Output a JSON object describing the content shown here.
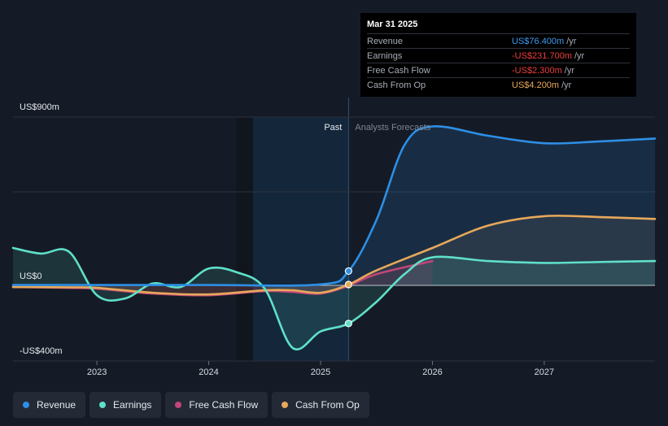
{
  "chart_data": {
    "type": "line",
    "title": "",
    "y_axis": {
      "labels": [
        "US$900m",
        "US$0",
        "-US$400m"
      ],
      "ylim": [
        -400,
        900
      ]
    },
    "x_axis": {
      "ticks": [
        "2023",
        "2024",
        "2025",
        "2026",
        "2027"
      ],
      "xlim": [
        2022.25,
        2027.99
      ]
    },
    "regions": {
      "past_label": "Past",
      "forecast_label": "Analysts Forecasts",
      "divider_x": 2025.25
    },
    "series": [
      {
        "name": "Revenue",
        "color": "#2d8fe6",
        "x": [
          2022.25,
          2023,
          2024,
          2025,
          2025.25,
          2025.5,
          2025.75,
          2026,
          2026.5,
          2027,
          2027.5,
          2027.99
        ],
        "y": [
          2,
          2,
          2,
          5,
          76.4,
          350,
          750,
          850,
          800,
          760,
          770,
          785
        ]
      },
      {
        "name": "Earnings",
        "color": "#5fe0c9",
        "x": [
          2022.25,
          2022.5,
          2022.75,
          2023,
          2023.25,
          2023.5,
          2023.75,
          2024,
          2024.25,
          2024.5,
          2024.75,
          2025,
          2025.25,
          2025.5,
          2025.75,
          2026,
          2026.5,
          2027,
          2027.5,
          2027.99
        ],
        "y": [
          200,
          170,
          180,
          -60,
          -80,
          10,
          -10,
          90,
          70,
          -20,
          -380,
          -280,
          -231.7,
          -100,
          60,
          150,
          130,
          120,
          125,
          130
        ]
      },
      {
        "name": "Free Cash Flow",
        "color": "#c2457a",
        "x": [
          2022.25,
          2022.75,
          2023,
          2023.5,
          2024,
          2024.5,
          2024.75,
          2025,
          2025.25,
          2025.5,
          2026
        ],
        "y": [
          -10,
          -15,
          -20,
          -50,
          -60,
          -35,
          -40,
          -50,
          -2.3,
          60,
          130
        ]
      },
      {
        "name": "Cash From Op",
        "color": "#e7a85a",
        "x": [
          2022.25,
          2022.75,
          2023,
          2023.5,
          2024,
          2024.5,
          2024.75,
          2025,
          2025.25,
          2025.5,
          2026,
          2026.5,
          2027,
          2027.5,
          2027.99
        ],
        "y": [
          -10,
          -12,
          -15,
          -45,
          -55,
          -30,
          -30,
          -45,
          4.2,
          80,
          200,
          320,
          370,
          365,
          355
        ]
      }
    ],
    "highlight_points": [
      {
        "series": "Revenue",
        "x": 2025.25,
        "y": 76.4
      },
      {
        "series": "Earnings",
        "x": 2025.25,
        "y": -231.7
      },
      {
        "series": "Cash From Op",
        "x": 2025.25,
        "y": 4.2
      }
    ],
    "grid": true
  },
  "tooltip": {
    "date": "Mar 31 2025",
    "rows": [
      {
        "label": "Revenue",
        "value": "US$76.400m",
        "unit": "/yr",
        "color": "#3b9cf2"
      },
      {
        "label": "Earnings",
        "value": "-US$231.700m",
        "unit": "/yr",
        "color": "#ee3c3c"
      },
      {
        "label": "Free Cash Flow",
        "value": "-US$2.300m",
        "unit": "/yr",
        "color": "#ee3c3c"
      },
      {
        "label": "Cash From Op",
        "value": "US$4.200m",
        "unit": "/yr",
        "color": "#e7a85a"
      }
    ]
  },
  "legend": [
    {
      "label": "Revenue",
      "color": "#2d8fe6"
    },
    {
      "label": "Earnings",
      "color": "#5fe0c9"
    },
    {
      "label": "Free Cash Flow",
      "color": "#c2457a"
    },
    {
      "label": "Cash From Op",
      "color": "#e7a85a"
    }
  ]
}
